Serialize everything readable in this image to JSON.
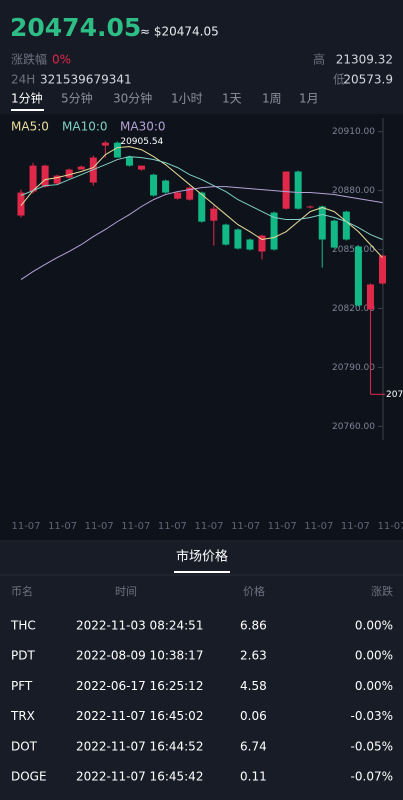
{
  "header": {
    "price": "20474.05",
    "approx": "≈ $20474.05",
    "change_label": "涨跌幅",
    "change": "0%",
    "high_label": "高",
    "high": "21309.32",
    "vol_label": "24H",
    "vol": "321539679341",
    "low_label": "低",
    "low": "20573.9"
  },
  "tabs": [
    "1分钟",
    "5分钟",
    "30分钟",
    "1小时",
    "1天",
    "1周",
    "1月"
  ],
  "active_tab": 0,
  "chart_data": {
    "type": "candlestick",
    "up_color": "#e0294a",
    "down_color": "#12b886",
    "open": [
      20867.3,
      20879.5,
      20882.0,
      20883.6,
      20886.6,
      20890.7,
      20884.1,
      20902.9,
      20904.4,
      20897.3,
      20890.7,
      20888.1,
      20885.1,
      20875.9,
      20875.4,
      20879.0,
      20864.7,
      20862.7,
      20860.2,
      20855.1,
      20849.0,
      20868.8,
      20870.8,
      20889.7,
      20871.4,
      20871.9,
      20864.7,
      20869.3,
      20851.5,
      20819.5,
      20832.7
    ],
    "high": [
      20880.5,
      20894.2,
      20893.2,
      20888.1,
      20891.2,
      20892.7,
      20897.8,
      20905.4,
      20905.0,
      20897.8,
      20892.7,
      20888.6,
      20885.6,
      20879.5,
      20882.0,
      20879.5,
      20872.4,
      20863.2,
      20860.7,
      20855.6,
      20857.6,
      20869.3,
      20889.7,
      20890.2,
      20872.4,
      20872.4,
      20865.2,
      20869.8,
      20852.0,
      20832.7,
      20847.4
    ],
    "low": [
      20866.3,
      20878.5,
      20881.5,
      20883.1,
      20886.1,
      20891.7,
      20882.5,
      20896.8,
      20896.8,
      20892.2,
      20890.2,
      20877.0,
      20878.5,
      20875.4,
      20874.9,
      20863.7,
      20852.0,
      20852.0,
      20850.0,
      20849.5,
      20844.9,
      20849.5,
      20870.3,
      20870.3,
      20870.9,
      20840.8,
      20850.5,
      20854.6,
      20821.0,
      20776.3,
      20832.2
    ],
    "close": [
      20879.0,
      20892.7,
      20892.7,
      20887.6,
      20890.7,
      20892.2,
      20896.8,
      20904.4,
      20896.8,
      20892.7,
      20892.7,
      20877.5,
      20879.0,
      20879.0,
      20881.5,
      20864.2,
      20870.8,
      20852.5,
      20850.5,
      20850.0,
      20857.1,
      20850.0,
      20889.7,
      20870.8,
      20871.9,
      20855.1,
      20851.0,
      20855.1,
      20821.5,
      20832.2,
      20846.9
    ],
    "series": [
      {
        "name": "MA5:0",
        "color": "#e8dd9a",
        "values": [
          20872.4,
          20880.0,
          20885.6,
          20886.6,
          20888.1,
          20889.7,
          20891.7,
          20898.3,
          20901.9,
          20902.4,
          20900.8,
          20897.3,
          20893.2,
          20888.1,
          20883.0,
          20878.0,
          20872.9,
          20867.8,
          20862.7,
          20859.1,
          20855.1,
          20856.1,
          20859.1,
          20864.2,
          20869.3,
          20871.4,
          20869.3,
          20864.2,
          20859.1,
          20852.5,
          20845.9
        ]
      },
      {
        "name": "MA10:0",
        "color": "#7fcfc4",
        "values": [
          20877.5,
          20880.0,
          20882.5,
          20883.0,
          20885.6,
          20888.1,
          20890.7,
          20893.2,
          20895.8,
          20897.3,
          20896.8,
          20895.8,
          20894.2,
          20891.7,
          20888.1,
          20885.6,
          20882.5,
          20879.5,
          20875.4,
          20872.4,
          20869.3,
          20866.3,
          20865.3,
          20865.3,
          20866.3,
          20867.8,
          20866.3,
          20864.2,
          20861.2,
          20857.6,
          20855.1
        ]
      },
      {
        "name": "MA30:0",
        "color": "#b3a2d6",
        "values": [
          20834.7,
          20838.8,
          20842.4,
          20845.9,
          20849.0,
          20852.5,
          20856.6,
          20860.2,
          20864.2,
          20867.8,
          20871.9,
          20875.4,
          20878.0,
          20879.5,
          20880.5,
          20881.5,
          20882.0,
          20882.0,
          20881.5,
          20881.0,
          20880.5,
          20880.0,
          20879.5,
          20879.0,
          20879.0,
          20878.5,
          20878.0,
          20876.9,
          20875.9,
          20874.9,
          20873.9
        ]
      }
    ],
    "x_labels": [
      "11-07",
      "11-07",
      "11-07",
      "11-07",
      "11-07",
      "11-07",
      "11-07",
      "11-07",
      "11-07",
      "11-07",
      "11-07"
    ],
    "ylim": [
      20750,
      20920
    ],
    "yticks": [
      {
        "value": 20910,
        "label": "20910.00"
      },
      {
        "value": 20880,
        "label": "20880.00"
      },
      {
        "value": 20850,
        "label": "20850.00"
      },
      {
        "value": 20820,
        "label": "20820.00"
      },
      {
        "value": 20790,
        "label": "20790.00"
      },
      {
        "value": 20760,
        "label": "20760.00"
      }
    ],
    "max_label": "20905.54",
    "last_label": "207"
  },
  "market": {
    "title": "市场价格",
    "columns": [
      "币名",
      "时间",
      "价格",
      "涨跌"
    ],
    "rows": [
      [
        "THC",
        "2022-11-03 08:24:51",
        "6.86",
        "0.00%"
      ],
      [
        "PDT",
        "2022-08-09 10:38:17",
        "2.63",
        "0.00%"
      ],
      [
        "PFT",
        "2022-06-17 16:25:12",
        "4.58",
        "0.00%"
      ],
      [
        "TRX",
        "2022-11-07 16:45:02",
        "0.06",
        "-0.03%"
      ],
      [
        "DOT",
        "2022-11-07 16:44:52",
        "6.74",
        "-0.05%"
      ],
      [
        "DOGE",
        "2022-11-07 16:45:42",
        "0.11",
        "-0.07%"
      ]
    ]
  }
}
